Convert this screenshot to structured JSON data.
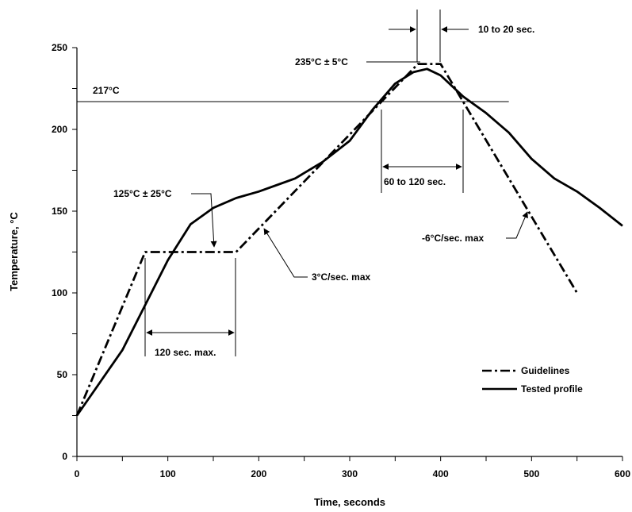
{
  "chart_data": {
    "type": "line",
    "xlabel": "Time, seconds",
    "ylabel": "Temperature, °C",
    "xlim": [
      0,
      600
    ],
    "ylim": [
      0,
      250
    ],
    "x_ticks": [
      0,
      100,
      200,
      300,
      400,
      500,
      600
    ],
    "x_tick_labels": [
      "0",
      "100",
      "200",
      "300",
      "400",
      "500",
      "600"
    ],
    "y_ticks": [
      0,
      50,
      100,
      150,
      200,
      250
    ],
    "y_tick_labels": [
      "0",
      "50",
      "100",
      "150",
      "200",
      "250"
    ],
    "grid": false,
    "legend_position": "bottom-right",
    "series": [
      {
        "name": "Guidelines",
        "style": "dash-dot",
        "color": "#000000",
        "points": [
          [
            0,
            25
          ],
          [
            75,
            125
          ],
          [
            175,
            125
          ],
          [
            375,
            240
          ],
          [
            400,
            240
          ],
          [
            550,
            100
          ]
        ]
      },
      {
        "name": "Tested profile",
        "style": "solid",
        "color": "#000000",
        "points": [
          [
            0,
            25
          ],
          [
            50,
            65
          ],
          [
            100,
            120
          ],
          [
            125,
            142
          ],
          [
            150,
            152
          ],
          [
            175,
            158
          ],
          [
            200,
            162
          ],
          [
            225,
            167
          ],
          [
            240,
            170
          ],
          [
            270,
            180
          ],
          [
            300,
            193
          ],
          [
            325,
            212
          ],
          [
            350,
            228
          ],
          [
            370,
            235
          ],
          [
            385,
            237
          ],
          [
            400,
            233
          ],
          [
            425,
            220
          ],
          [
            450,
            210
          ],
          [
            475,
            198
          ],
          [
            500,
            182
          ],
          [
            525,
            170
          ],
          [
            550,
            162
          ],
          [
            575,
            152
          ],
          [
            600,
            141
          ]
        ]
      }
    ],
    "reference_lines": [
      {
        "label": "217°C",
        "y": 217,
        "x_from": 0,
        "x_to": 475
      }
    ],
    "annotations": {
      "peak": "235°C ± 5°C",
      "peak_time": "10 to 20 sec.",
      "above_liquidus_time": "60 to 120 sec.",
      "soak_temp": "125°C ± 25°C",
      "soak_time": "120 sec. max.",
      "ramp_up": "3°C/sec. max",
      "ramp_down": "-6°C/sec. max"
    }
  }
}
